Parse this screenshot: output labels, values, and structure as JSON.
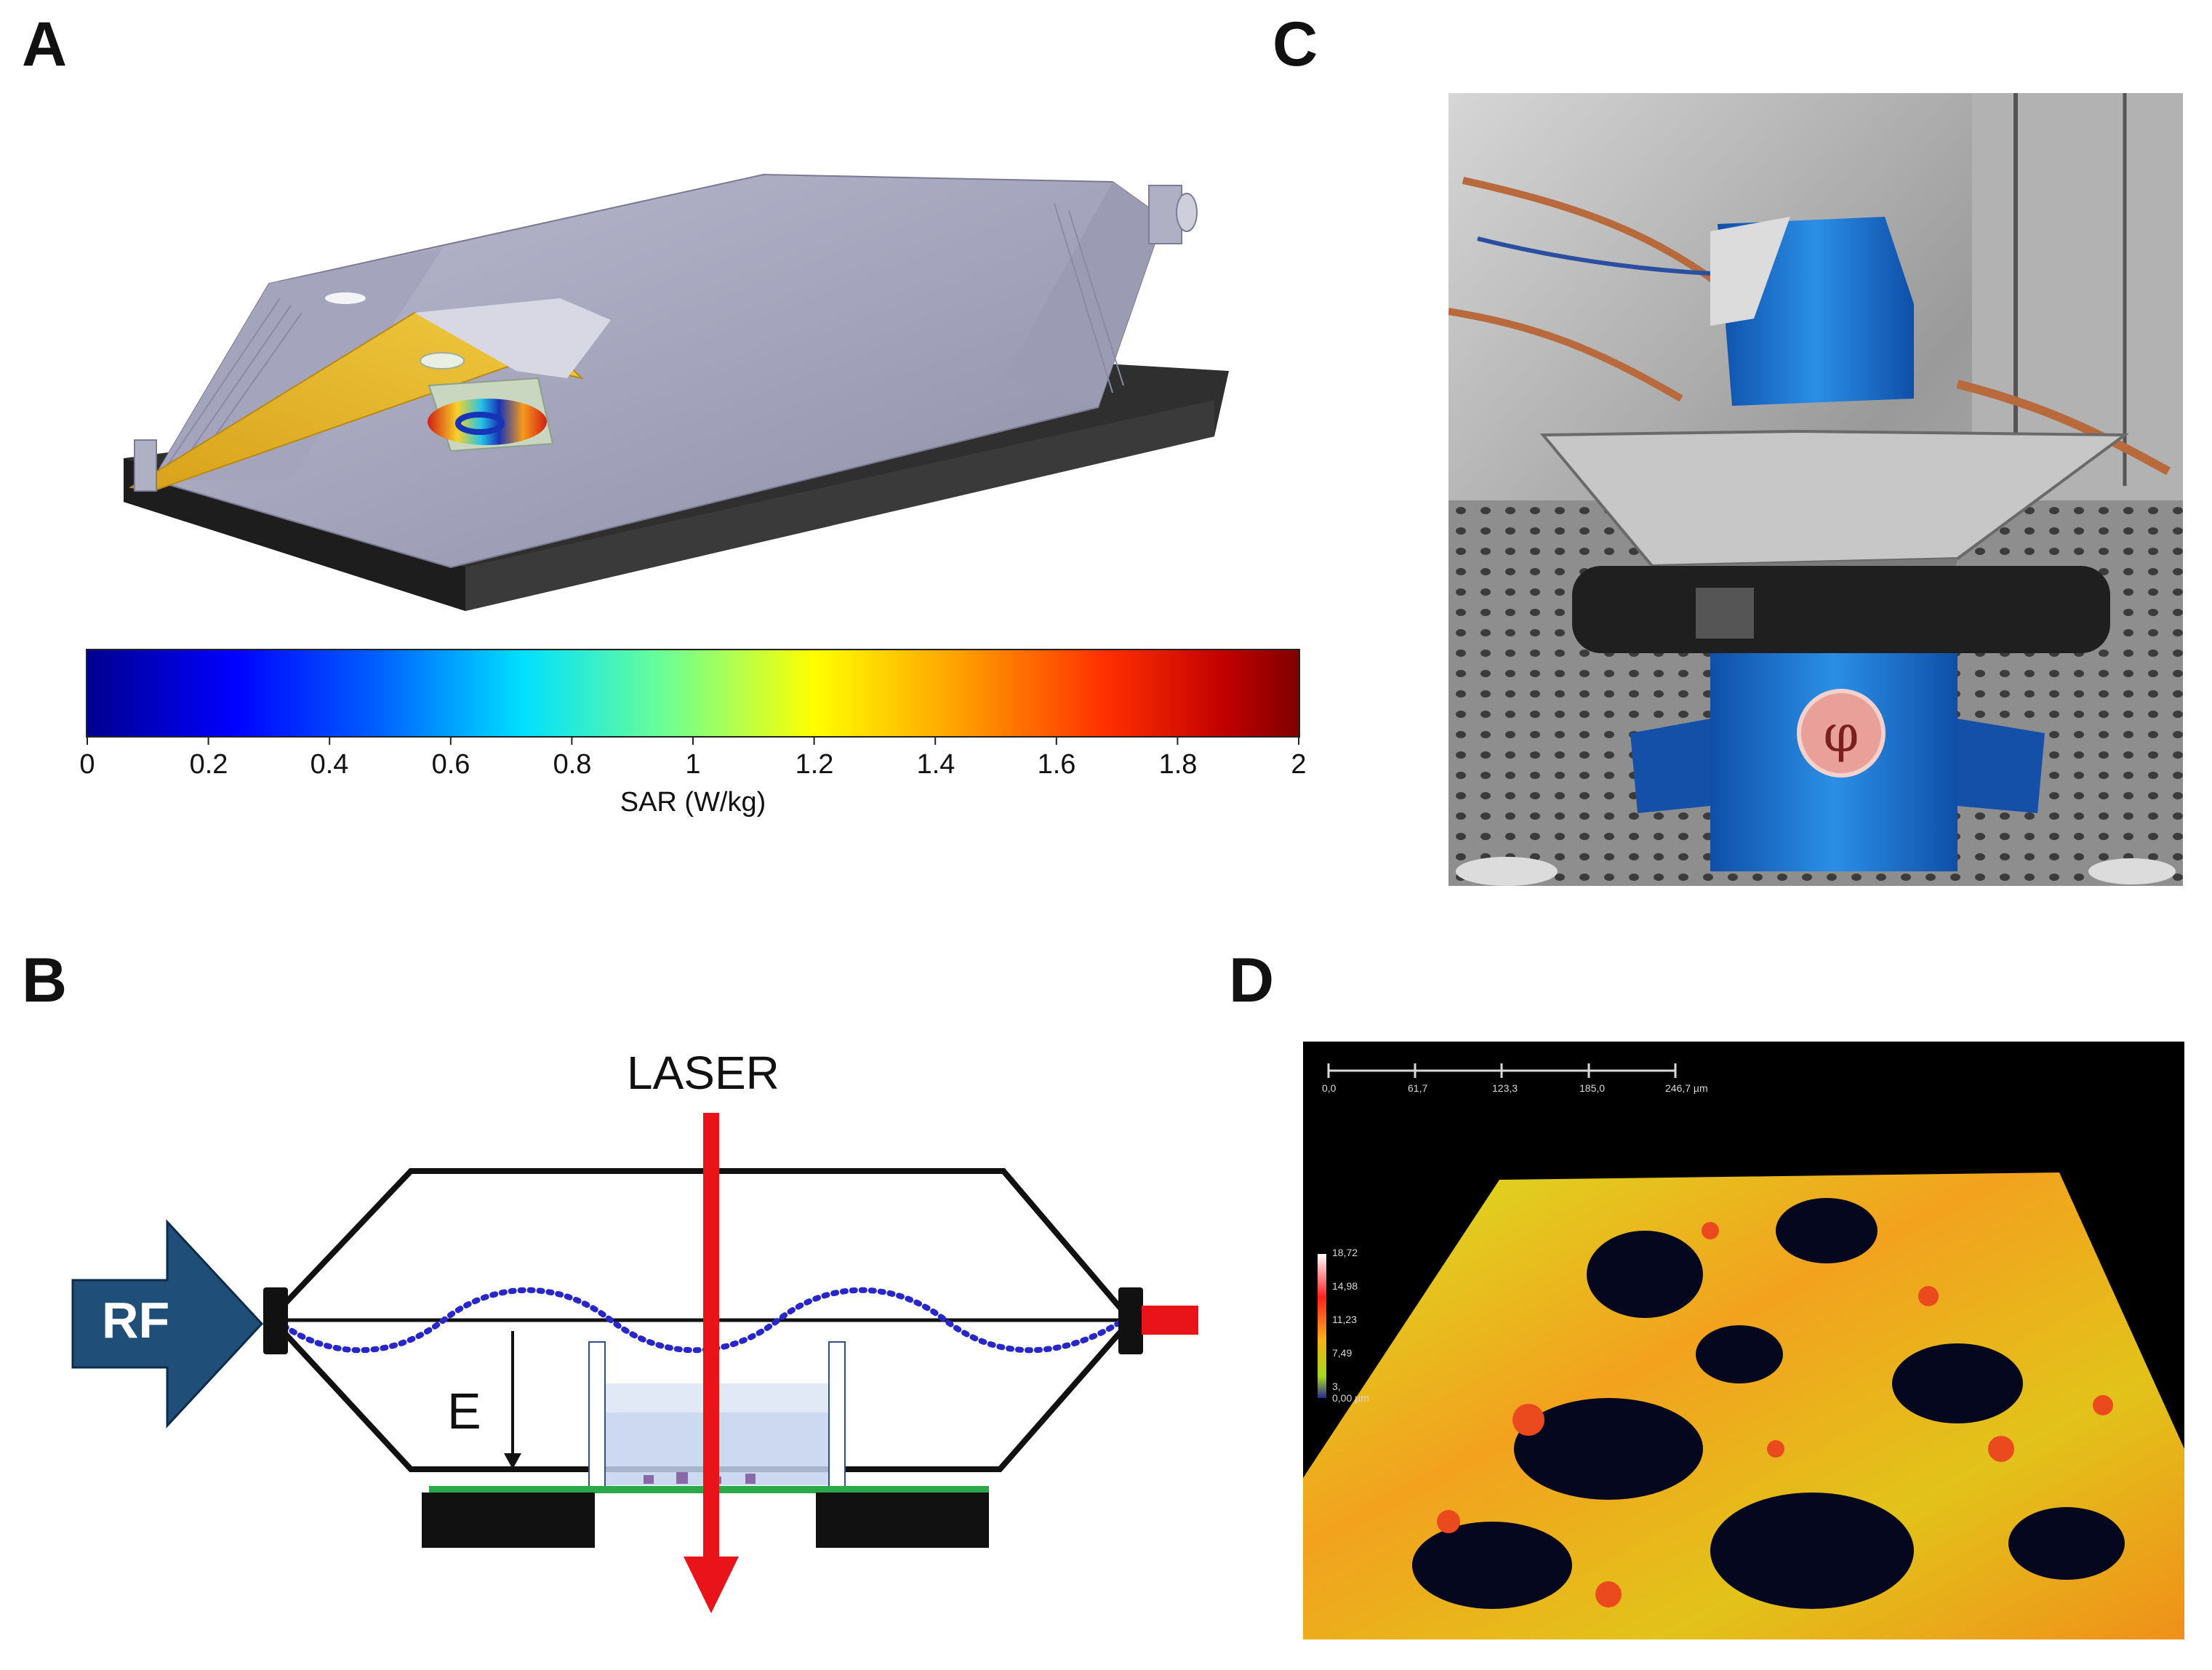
{
  "panels": {
    "a": "A",
    "b": "B",
    "c": "C",
    "d": "D"
  },
  "colorbar": {
    "ticks": [
      "0",
      "0.2",
      "0.4",
      "0.6",
      "0.8",
      "1",
      "1.2",
      "1.4",
      "1.6",
      "1.8",
      "2"
    ],
    "label": "SAR (W/kg)",
    "colormap": "jet",
    "range": [
      0,
      2
    ]
  },
  "schematic": {
    "laser_label": "LASER",
    "rf_label": "RF",
    "field_label": "E",
    "colors": {
      "laser": "#e8141a",
      "rf_arrow": "#1f4e79",
      "wave": "#2626c9",
      "substrate": "#2aa84a",
      "terminal": "#e8141a"
    }
  },
  "confocal": {
    "scalebar_ticks": [
      "0,0",
      "61,7",
      "123,3",
      "185,0",
      "246,7 µm"
    ],
    "height_ticks": [
      "18,72",
      "14,98",
      "11,23",
      "7,49",
      "3,",
      "0,00 µm"
    ]
  }
}
